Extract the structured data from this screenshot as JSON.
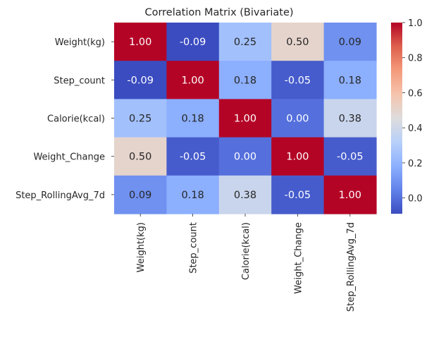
{
  "chart_data": {
    "type": "heatmap",
    "title": "Correlation Matrix (Bivariate)",
    "rows": [
      "Weight(kg)",
      "Step_count",
      "Calorie(kcal)",
      "Weight_Change",
      "Step_RollingAvg_7d"
    ],
    "columns": [
      "Weight(kg)",
      "Step_count",
      "Calorie(kcal)",
      "Weight_Change",
      "Step_RollingAvg_7d"
    ],
    "values": [
      [
        1.0,
        -0.09,
        0.25,
        0.5,
        0.09
      ],
      [
        -0.09,
        1.0,
        0.18,
        -0.05,
        0.18
      ],
      [
        0.25,
        0.18,
        1.0,
        0.0,
        0.38
      ],
      [
        0.5,
        -0.05,
        0.0,
        1.0,
        -0.05
      ],
      [
        0.09,
        0.18,
        0.38,
        -0.05,
        1.0
      ]
    ],
    "value_format": "0.00",
    "colormap": "coolwarm",
    "colorbar": {
      "range": [
        -0.09,
        1.0
      ],
      "ticks": [
        -0.0,
        0.2,
        0.4,
        0.6,
        0.8,
        1.0
      ],
      "tick_labels": [
        "0.0",
        "0.2",
        "0.4",
        "0.6",
        "0.8",
        "1.0"
      ],
      "placement": "right"
    }
  }
}
